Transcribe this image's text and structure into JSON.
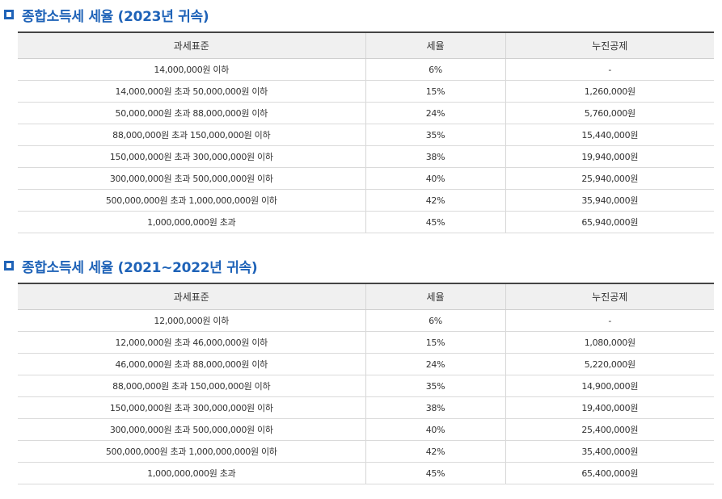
{
  "accent_color": "#1f63b8",
  "bullet_icon": "square-bullet-icon",
  "sections": [
    {
      "title": "종합소득세 세율 (2023년 귀속)",
      "headers": [
        "과세표준",
        "세율",
        "누진공제"
      ],
      "rows": [
        [
          "14,000,000원 이하",
          "6%",
          "-"
        ],
        [
          "14,000,000원 초과 50,000,000원 이하",
          "15%",
          "1,260,000원"
        ],
        [
          "50,000,000원 초과 88,000,000원 이하",
          "24%",
          "5,760,000원"
        ],
        [
          "88,000,000원 초과 150,000,000원 이하",
          "35%",
          "15,440,000원"
        ],
        [
          "150,000,000원 초과 300,000,000원 이하",
          "38%",
          "19,940,000원"
        ],
        [
          "300,000,000원 초과 500,000,000원 이하",
          "40%",
          "25,940,000원"
        ],
        [
          "500,000,000원 초과 1,000,000,000원 이하",
          "42%",
          "35,940,000원"
        ],
        [
          "1,000,000,000원 초과",
          "45%",
          "65,940,000원"
        ]
      ]
    },
    {
      "title": "종합소득세 세율 (2021~2022년 귀속)",
      "headers": [
        "과세표준",
        "세율",
        "누진공제"
      ],
      "rows": [
        [
          "12,000,000원 이하",
          "6%",
          "-"
        ],
        [
          "12,000,000원 초과 46,000,000원 이하",
          "15%",
          "1,080,000원"
        ],
        [
          "46,000,000원 초과 88,000,000원 이하",
          "24%",
          "5,220,000원"
        ],
        [
          "88,000,000원 초과 150,000,000원 이하",
          "35%",
          "14,900,000원"
        ],
        [
          "150,000,000원 초과 300,000,000원 이하",
          "38%",
          "19,400,000원"
        ],
        [
          "300,000,000원 초과 500,000,000원 이하",
          "40%",
          "25,400,000원"
        ],
        [
          "500,000,000원 초과 1,000,000,000원 이하",
          "42%",
          "35,400,000원"
        ],
        [
          "1,000,000,000원 초과",
          "45%",
          "65,400,000원"
        ]
      ]
    }
  ]
}
